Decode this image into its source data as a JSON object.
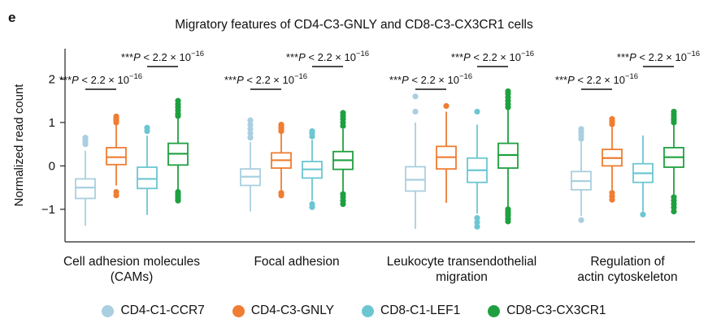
{
  "panel_label": "e",
  "chart_data": {
    "type": "box",
    "title": "Migratory features of CD4-C3-GNLY and CD8-C3-CX3CR1 cells",
    "ylabel": "Normalized read count",
    "ylim": [
      -1.75,
      2.7
    ],
    "yticks": [
      -1,
      0,
      1,
      2
    ],
    "grid": false,
    "legend_position": "bottom",
    "series": [
      {
        "name": "CD4-C1-CCR7",
        "color": "#a9cfe0"
      },
      {
        "name": "CD4-C3-GNLY",
        "color": "#ef7d32"
      },
      {
        "name": "CD8-C1-LEF1",
        "color": "#6cc6d2"
      },
      {
        "name": "CD8-C3-CX3CR1",
        "color": "#1fa040"
      }
    ],
    "categories": [
      {
        "label_lines": [
          "Cell adhesion molecules",
          "(CAMs)"
        ],
        "boxes": [
          {
            "q1": -0.75,
            "median": -0.5,
            "q3": -0.3,
            "whisker_low": -1.38,
            "whisker_high": 0.35,
            "outliers_low": [],
            "outliers_high": [
              0.5,
              0.55,
              0.6,
              0.65
            ]
          },
          {
            "q1": 0.03,
            "median": 0.2,
            "q3": 0.42,
            "whisker_low": -0.45,
            "whisker_high": 0.95,
            "outliers_low": [
              -0.6,
              -0.68
            ],
            "outliers_high": [
              1.0,
              1.05,
              1.1,
              1.14
            ]
          },
          {
            "q1": -0.52,
            "median": -0.3,
            "q3": -0.03,
            "whisker_low": -1.13,
            "whisker_high": 0.7,
            "outliers_low": [],
            "outliers_high": [
              0.8,
              0.88
            ]
          },
          {
            "q1": 0.02,
            "median": 0.28,
            "q3": 0.52,
            "whisker_low": -0.55,
            "whisker_high": 1.1,
            "outliers_low": [
              -0.6,
              -0.65,
              -0.7,
              -0.75,
              -0.8
            ],
            "outliers_high": [
              1.15,
              1.2,
              1.28,
              1.35,
              1.42,
              1.5
            ]
          }
        ]
      },
      {
        "label_lines": [
          "Focal adhesion"
        ],
        "boxes": [
          {
            "q1": -0.45,
            "median": -0.25,
            "q3": -0.07,
            "whisker_low": -1.05,
            "whisker_high": 0.55,
            "outliers_low": [],
            "outliers_high": [
              0.65,
              0.75,
              0.85,
              0.95,
              1.05
            ]
          },
          {
            "q1": -0.05,
            "median": 0.13,
            "q3": 0.3,
            "whisker_low": -0.55,
            "whisker_high": 0.75,
            "outliers_low": [
              -0.62,
              -0.68
            ],
            "outliers_high": [
              0.8,
              0.85,
              0.9,
              0.95
            ]
          },
          {
            "q1": -0.28,
            "median": -0.08,
            "q3": 0.1,
            "whisker_low": -0.8,
            "whisker_high": 0.6,
            "outliers_low": [
              -0.88,
              -0.95
            ],
            "outliers_high": [
              0.68,
              0.75,
              0.8
            ]
          },
          {
            "q1": -0.08,
            "median": 0.13,
            "q3": 0.33,
            "whisker_low": -0.6,
            "whisker_high": 0.85,
            "outliers_low": [
              -0.65,
              -0.72,
              -0.8,
              -0.88
            ],
            "outliers_high": [
              0.92,
              1.0,
              1.08,
              1.15,
              1.22
            ]
          }
        ]
      },
      {
        "label_lines": [
          "Leukocyte transendothelial",
          "migration"
        ],
        "boxes": [
          {
            "q1": -0.58,
            "median": -0.32,
            "q3": -0.02,
            "whisker_low": -1.45,
            "whisker_high": 1.0,
            "outliers_low": [],
            "outliers_high": [
              1.25,
              1.6
            ]
          },
          {
            "q1": -0.07,
            "median": 0.2,
            "q3": 0.45,
            "whisker_low": -0.85,
            "whisker_high": 1.25,
            "outliers_low": [],
            "outliers_high": [
              1.38
            ]
          },
          {
            "q1": -0.38,
            "median": -0.1,
            "q3": 0.18,
            "whisker_low": -1.1,
            "whisker_high": 0.95,
            "outliers_low": [
              -1.2,
              -1.3,
              -1.4
            ],
            "outliers_high": [
              1.25
            ]
          },
          {
            "q1": -0.05,
            "median": 0.25,
            "q3": 0.52,
            "whisker_low": -0.95,
            "whisker_high": 1.3,
            "outliers_low": [
              -1.0,
              -1.05,
              -1.1,
              -1.15,
              -1.22,
              -1.28
            ],
            "outliers_high": [
              1.35,
              1.42,
              1.5,
              1.58,
              1.66,
              1.72
            ]
          }
        ]
      },
      {
        "label_lines": [
          "Regulation of",
          "actin cytoskeleton"
        ],
        "boxes": [
          {
            "q1": -0.55,
            "median": -0.35,
            "q3": -0.13,
            "whisker_low": -1.15,
            "whisker_high": 0.55,
            "outliers_low": [
              -1.25
            ],
            "outliers_high": [
              0.62,
              0.7,
              0.78,
              0.85
            ]
          },
          {
            "q1": 0.0,
            "median": 0.18,
            "q3": 0.38,
            "whisker_low": -0.55,
            "whisker_high": 0.9,
            "outliers_low": [
              -0.62,
              -0.7,
              -0.78
            ],
            "outliers_high": [
              0.96,
              1.02,
              1.08
            ]
          },
          {
            "q1": -0.38,
            "median": -0.17,
            "q3": 0.05,
            "whisker_low": -1.05,
            "whisker_high": 0.7,
            "outliers_low": [
              -1.12
            ],
            "outliers_high": []
          },
          {
            "q1": -0.03,
            "median": 0.2,
            "q3": 0.42,
            "whisker_low": -0.65,
            "whisker_high": 0.95,
            "outliers_low": [
              -0.72,
              -0.8,
              -0.88,
              -0.96,
              -1.05
            ],
            "outliers_high": [
              1.0,
              1.06,
              1.12,
              1.18,
              1.25
            ]
          }
        ]
      }
    ],
    "significance": [
      {
        "stars": "***",
        "text": "P < 2.2 × 10",
        "exponent": "−16",
        "group": 0,
        "pair": [
          0,
          1
        ],
        "level": "lower"
      },
      {
        "stars": "***",
        "text": "P < 2.2 × 10",
        "exponent": "−16",
        "group": 0,
        "pair": [
          2,
          3
        ],
        "level": "upper"
      },
      {
        "stars": "***",
        "text": "P < 2.2 × 10",
        "exponent": "−16",
        "group": 1,
        "pair": [
          0,
          1
        ],
        "level": "lower"
      },
      {
        "stars": "***",
        "text": "P < 2.2 × 10",
        "exponent": "−16",
        "group": 1,
        "pair": [
          2,
          3
        ],
        "level": "upper"
      },
      {
        "stars": "***",
        "text": "P < 2.2 × 10",
        "exponent": "−16",
        "group": 2,
        "pair": [
          0,
          1
        ],
        "level": "lower"
      },
      {
        "stars": "***",
        "text": "P < 2.2 × 10",
        "exponent": "−16",
        "group": 2,
        "pair": [
          2,
          3
        ],
        "level": "upper"
      },
      {
        "stars": "***",
        "text": "P < 2.2 × 10",
        "exponent": "−16",
        "group": 3,
        "pair": [
          0,
          1
        ],
        "level": "lower"
      },
      {
        "stars": "***",
        "text": "P < 2.2 × 10",
        "exponent": "−16",
        "group": 3,
        "pair": [
          2,
          3
        ],
        "level": "upper"
      }
    ]
  }
}
